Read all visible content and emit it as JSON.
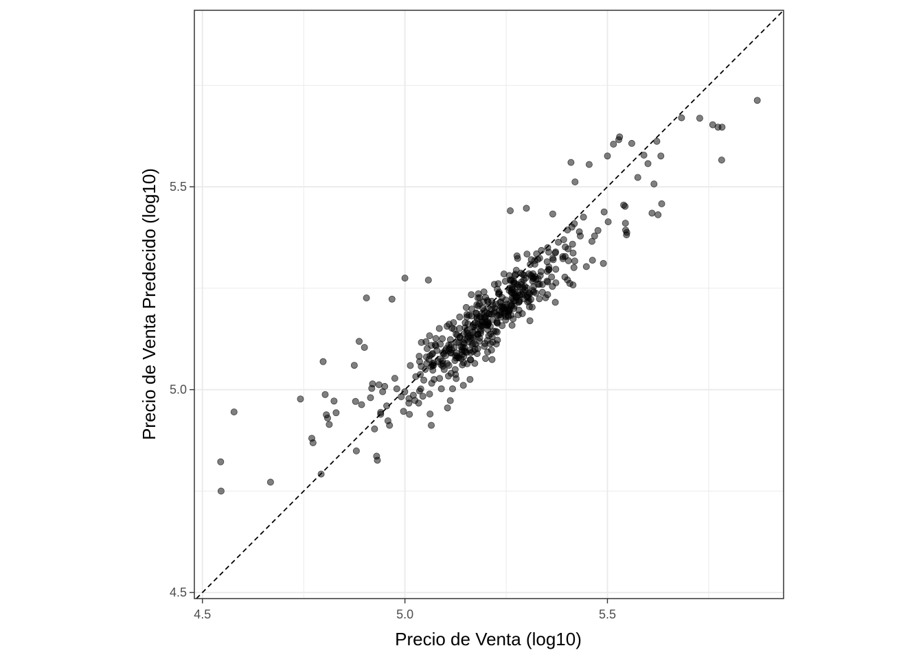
{
  "chart_data": {
    "type": "scatter",
    "title": "",
    "xlabel": "Precio de Venta (log10)",
    "ylabel": "Precio de Venta Predecido (log10)",
    "xlim": [
      4.48,
      5.935
    ],
    "ylim": [
      4.485,
      5.935
    ],
    "x_ticks": [
      4.5,
      5.0,
      5.5
    ],
    "y_ticks": [
      4.5,
      5.0,
      5.5
    ],
    "x_tick_labels": [
      "4.5",
      "5.0",
      "5.5"
    ],
    "y_tick_labels": [
      "4.5",
      "5.0",
      "5.5"
    ],
    "grid": true,
    "reference_line": {
      "slope": 1,
      "intercept": 0,
      "style": "dashed",
      "color": "#000000"
    },
    "point_color": "#000000",
    "point_alpha": 0.5,
    "outlier_points": [
      [
        4.545,
        4.822
      ],
      [
        4.546,
        4.75
      ],
      [
        4.578,
        4.945
      ],
      [
        4.668,
        4.772
      ],
      [
        4.742,
        4.977
      ],
      [
        4.77,
        4.88
      ],
      [
        4.773,
        4.869
      ],
      [
        4.793,
        4.792
      ],
      [
        4.798,
        5.069
      ],
      [
        4.803,
        4.988
      ],
      [
        4.806,
        4.938
      ],
      [
        4.809,
        4.93
      ],
      [
        4.813,
        4.914
      ],
      [
        4.825,
        4.972
      ],
      [
        4.83,
        4.943
      ],
      [
        4.875,
        5.06
      ],
      [
        4.878,
        4.971
      ],
      [
        4.88,
        4.849
      ],
      [
        4.887,
        5.119
      ],
      [
        4.893,
        4.963
      ],
      [
        4.9,
        5.104
      ],
      [
        4.905,
        5.226
      ],
      [
        4.915,
        4.98
      ],
      [
        4.918,
        5.003
      ],
      [
        4.92,
        5.014
      ],
      [
        4.925,
        4.903
      ],
      [
        4.93,
        4.836
      ],
      [
        4.932,
        4.826
      ],
      [
        4.936,
        5.012
      ],
      [
        4.94,
        4.944
      ],
      [
        4.945,
        4.995
      ],
      [
        4.95,
        5.008
      ],
      [
        4.955,
        4.96
      ],
      [
        4.962,
        4.912
      ],
      [
        4.968,
        5.223
      ],
      [
        4.975,
        5.028
      ],
      [
        4.98,
        5.002
      ],
      [
        5.0,
        5.275
      ],
      [
        5.01,
        4.978
      ],
      [
        5.058,
        5.27
      ],
      [
        5.062,
        4.94
      ],
      [
        5.065,
        4.912
      ],
      [
        5.09,
        5.002
      ],
      [
        5.105,
        4.955
      ],
      [
        5.112,
        4.973
      ],
      [
        5.26,
        5.441
      ],
      [
        5.3,
        5.447
      ],
      [
        5.365,
        5.433
      ],
      [
        5.41,
        5.56
      ],
      [
        5.415,
        5.258
      ],
      [
        5.42,
        5.512
      ],
      [
        5.455,
        5.555
      ],
      [
        5.49,
        5.311
      ],
      [
        5.5,
        5.576
      ],
      [
        5.515,
        5.605
      ],
      [
        5.528,
        5.616
      ],
      [
        5.53,
        5.623
      ],
      [
        5.54,
        5.455
      ],
      [
        5.545,
        5.393
      ],
      [
        5.56,
        5.607
      ],
      [
        5.575,
        5.523
      ],
      [
        5.59,
        5.578
      ],
      [
        5.6,
        5.557
      ],
      [
        5.61,
        5.435
      ],
      [
        5.615,
        5.507
      ],
      [
        5.622,
        5.612
      ],
      [
        5.625,
        5.431
      ],
      [
        5.632,
        5.576
      ],
      [
        5.634,
        5.458
      ],
      [
        5.683,
        5.67
      ],
      [
        5.728,
        5.669
      ],
      [
        5.76,
        5.653
      ],
      [
        5.773,
        5.647
      ],
      [
        5.782,
        5.566
      ],
      [
        5.783,
        5.647
      ],
      [
        5.87,
        5.713
      ]
    ],
    "cluster": {
      "count": 430,
      "x_center": 5.22,
      "x_sd": 0.105,
      "x_range": [
        4.94,
        5.66
      ],
      "y_intercept": 1.06,
      "y_slope": 0.79,
      "y_noise_sd": 0.04,
      "seed": 7
    }
  }
}
